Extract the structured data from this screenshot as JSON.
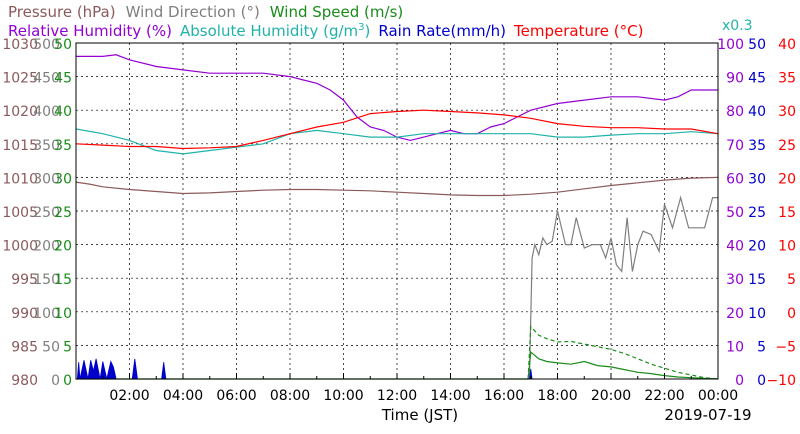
{
  "chart_data": {
    "type": "line",
    "xlabel": "Time (JST)",
    "date": "2019-07-19",
    "x_ticks": [
      "02:00",
      "04:00",
      "06:00",
      "08:00",
      "10:00",
      "12:00",
      "14:00",
      "16:00",
      "18:00",
      "20:00",
      "22:00",
      "00:00"
    ],
    "xlim_hours": [
      0,
      24
    ],
    "grid": true,
    "legend": {
      "row1": [
        {
          "name": "Pressure (hPa)",
          "color": "#8b5a5a"
        },
        {
          "name": "Wind Direction (°)",
          "color": "#7f7f7f"
        },
        {
          "name": "Wind Speed (m/s)",
          "color": "#1a8c1a"
        }
      ],
      "row2": [
        {
          "name": "Relative Humidity (%)",
          "color": "#9400d3"
        },
        {
          "name": "Absolute Humidity (g/m",
          "sup": "3",
          "suffix": ")",
          "color": "#20b2aa"
        },
        {
          "name": "Rain Rate(mm/h)",
          "color": "#0000cd"
        },
        {
          "name": "Temperature (°C)",
          "color": "#ff0000"
        }
      ],
      "scale_note": "x0.3"
    },
    "axes": {
      "pressure": {
        "ticks": [
          "980",
          "985",
          "990",
          "995",
          "1000",
          "1005",
          "1010",
          "1015",
          "1020",
          "1025",
          "1030"
        ],
        "range": [
          980,
          1030
        ],
        "color": "#8b5a5a"
      },
      "wind_direction": {
        "ticks": [
          "0",
          "50",
          "100",
          "150",
          "200",
          "250",
          "300",
          "350",
          "400",
          "450",
          "500"
        ],
        "range": [
          0,
          500
        ],
        "color": "#7f7f7f"
      },
      "wind_speed": {
        "ticks": [
          "0",
          "5",
          "10",
          "15",
          "20",
          "25",
          "30",
          "35",
          "40",
          "45",
          "50"
        ],
        "range": [
          0,
          50
        ],
        "color": "#1a8c1a"
      },
      "relative_humidity": {
        "ticks": [
          "0",
          "10",
          "20",
          "30",
          "40",
          "50",
          "60",
          "70",
          "80",
          "90",
          "100"
        ],
        "range": [
          0,
          100
        ],
        "color": "#9400d3"
      },
      "rain_rate": {
        "ticks": [
          "0",
          "5",
          "10",
          "15",
          "20",
          "25",
          "30",
          "35",
          "40",
          "45",
          "50"
        ],
        "range": [
          0,
          50
        ],
        "color": "#0000cd"
      },
      "temperature": {
        "ticks": [
          "−10",
          "−5",
          "0",
          "5",
          "10",
          "15",
          "20",
          "25",
          "30",
          "35",
          "40"
        ],
        "range": [
          -10,
          40
        ],
        "color": "#ff0000"
      }
    },
    "series": [
      {
        "name": "Pressure (hPa)",
        "axis": "pressure",
        "color": "#8b5a5a",
        "x": [
          0,
          0.5,
          1,
          2,
          3,
          4,
          5,
          6,
          7,
          8,
          9,
          10,
          11,
          12,
          13,
          14,
          15,
          16,
          17,
          18,
          19,
          20,
          21,
          22,
          23,
          24
        ],
        "y": [
          1009.3,
          1009.0,
          1008.6,
          1008.2,
          1007.9,
          1007.6,
          1007.7,
          1007.9,
          1008.1,
          1008.2,
          1008.2,
          1008.1,
          1008.0,
          1007.8,
          1007.6,
          1007.4,
          1007.3,
          1007.3,
          1007.5,
          1007.8,
          1008.3,
          1008.8,
          1009.2,
          1009.6,
          1009.9,
          1010.0
        ]
      },
      {
        "name": "Wind Direction (°)",
        "axis": "wind_direction",
        "color": "#7f7f7f",
        "x": [
          16.95,
          17.05,
          17.15,
          17.3,
          17.45,
          17.6,
          17.8,
          18.0,
          18.3,
          18.5,
          18.7,
          19.0,
          19.3,
          19.6,
          19.8,
          20.0,
          20.2,
          20.4,
          20.6,
          20.8,
          21.0,
          21.2,
          21.5,
          21.8,
          22.0,
          22.3,
          22.6,
          22.9,
          23.2,
          23.5,
          23.8,
          24.0
        ],
        "y": [
          0,
          180,
          200,
          185,
          210,
          200,
          205,
          250,
          200,
          200,
          240,
          195,
          200,
          200,
          180,
          210,
          170,
          160,
          240,
          160,
          200,
          220,
          215,
          190,
          260,
          225,
          270,
          225,
          225,
          225,
          270,
          270
        ]
      },
      {
        "name": "Wind Speed (m/s)",
        "axis": "wind_speed",
        "color": "#1a8c1a",
        "x": [
          0,
          16.9,
          17.0,
          17.3,
          17.6,
          18.0,
          18.5,
          19.0,
          19.5,
          20.0,
          20.5,
          21.0,
          21.5,
          22.0,
          22.5,
          23.0,
          23.5,
          24.0
        ],
        "y": [
          0,
          0,
          4.0,
          3.0,
          2.6,
          2.4,
          2.2,
          2.6,
          2.0,
          1.8,
          1.4,
          1.0,
          0.8,
          0.5,
          0.3,
          0.2,
          0.1,
          0
        ]
      },
      {
        "name": "Wind Speed gust (m/s)",
        "axis": "wind_speed",
        "color": "#1a8c1a",
        "style": "dashed",
        "x": [
          16.9,
          17.0,
          17.3,
          17.6,
          18.0,
          18.5,
          19.0,
          19.5,
          20.0,
          20.5,
          21.0,
          21.5,
          22.0,
          22.5,
          23.0,
          23.5,
          24.0
        ],
        "y": [
          0,
          7.8,
          6.5,
          6.0,
          5.5,
          5.6,
          5.2,
          4.8,
          4.4,
          3.8,
          3.0,
          2.2,
          1.6,
          1.0,
          0.6,
          0.2,
          0
        ]
      },
      {
        "name": "Relative Humidity (%)",
        "axis": "relative_humidity",
        "color": "#9400d3",
        "x": [
          0,
          1,
          1.5,
          2,
          3,
          4,
          5,
          6,
          7,
          8,
          8.5,
          9,
          9.5,
          10,
          10.5,
          11,
          11.5,
          12,
          12.5,
          13,
          13.5,
          14,
          14.5,
          15,
          15.5,
          16,
          16.5,
          17,
          18,
          19,
          20,
          21,
          22,
          22.5,
          23,
          24
        ],
        "y": [
          96,
          96,
          96.5,
          95,
          93,
          92,
          91,
          91,
          91,
          90,
          89,
          88,
          86,
          83,
          78,
          75,
          74,
          72,
          71,
          72,
          73,
          74,
          73,
          73,
          75,
          76,
          78,
          80,
          82,
          83,
          84,
          84,
          83,
          84,
          86,
          86
        ]
      },
      {
        "name": "Absolute Humidity (g/m3) x0.3",
        "axis": "temperature",
        "color": "#20b2aa",
        "x": [
          0,
          1,
          2,
          3,
          4,
          5,
          6,
          7,
          8,
          9,
          10,
          11,
          12,
          13,
          14,
          15,
          16,
          17,
          18,
          19,
          20,
          21,
          22,
          23,
          24
        ],
        "y": [
          27.2,
          26.5,
          25.5,
          24.0,
          23.5,
          24.0,
          24.5,
          25.0,
          26.5,
          27.0,
          26.5,
          26.0,
          26.0,
          26.5,
          26.5,
          26.5,
          26.5,
          26.5,
          26.0,
          26.0,
          26.3,
          26.5,
          26.5,
          26.8,
          26.5
        ]
      },
      {
        "name": "Temperature (°C)",
        "axis": "temperature",
        "color": "#ff0000",
        "x": [
          0,
          1,
          2,
          3,
          4,
          5,
          6,
          7,
          8,
          9,
          10,
          11,
          12,
          13,
          14,
          15,
          16,
          17,
          18,
          19,
          20,
          21,
          22,
          23,
          24
        ],
        "y": [
          25.0,
          24.8,
          24.6,
          24.6,
          24.3,
          24.4,
          24.6,
          25.5,
          26.5,
          27.5,
          28.2,
          29.5,
          29.8,
          30.0,
          29.8,
          29.6,
          29.3,
          28.8,
          28.0,
          27.6,
          27.4,
          27.4,
          27.2,
          27.2,
          26.5
        ]
      },
      {
        "name": "Rain Rate(mm/h)",
        "axis": "rain_rate",
        "color": "#0000cd",
        "type": "area",
        "x": [
          0.05,
          0.1,
          0.15,
          0.3,
          0.45,
          0.55,
          0.65,
          0.75,
          0.9,
          1.0,
          1.15,
          1.3,
          1.4,
          1.5,
          2.1,
          2.2,
          2.3,
          3.2,
          3.28,
          3.36,
          16.95,
          17.0,
          17.05
        ],
        "y": [
          0,
          2.5,
          0,
          2.8,
          0,
          2.8,
          1.2,
          3.0,
          0,
          2.6,
          0,
          2.6,
          1.8,
          0,
          0,
          3.0,
          0,
          0,
          2.5,
          0,
          0,
          1.5,
          0
        ]
      }
    ]
  }
}
